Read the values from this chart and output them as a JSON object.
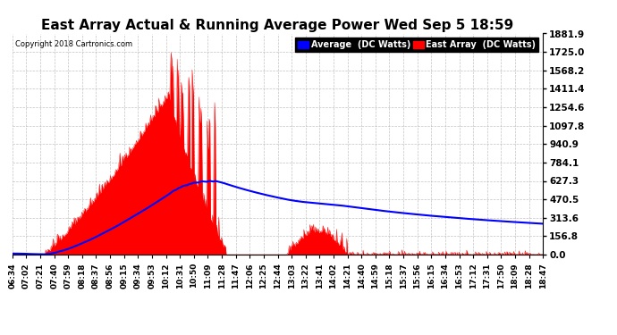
{
  "title": "East Array Actual & Running Average Power Wed Sep 5 18:59",
  "copyright": "Copyright 2018 Cartronics.com",
  "legend_labels": [
    "Average  (DC Watts)",
    "East Array  (DC Watts)"
  ],
  "y_ticks": [
    0.0,
    156.8,
    313.6,
    470.5,
    627.3,
    784.1,
    940.9,
    1097.8,
    1254.6,
    1411.4,
    1568.2,
    1725.0,
    1881.9
  ],
  "y_max": 1881.9,
  "x_labels": [
    "06:34",
    "07:02",
    "07:21",
    "07:40",
    "07:59",
    "08:18",
    "08:37",
    "08:56",
    "09:15",
    "09:34",
    "09:53",
    "10:12",
    "10:31",
    "10:50",
    "11:09",
    "11:28",
    "11:47",
    "12:06",
    "12:25",
    "12:44",
    "13:03",
    "13:22",
    "13:41",
    "14:02",
    "14:21",
    "14:40",
    "14:59",
    "15:18",
    "15:37",
    "15:56",
    "16:15",
    "16:34",
    "16:53",
    "17:12",
    "17:31",
    "17:50",
    "18:09",
    "18:28",
    "18:47"
  ],
  "background_color": "#ffffff",
  "plot_bg_color": "#ffffff",
  "grid_color": "#aaaaaa",
  "title_fontsize": 11,
  "title_color": "#000000",
  "fill_color": "red",
  "line_color": "blue"
}
